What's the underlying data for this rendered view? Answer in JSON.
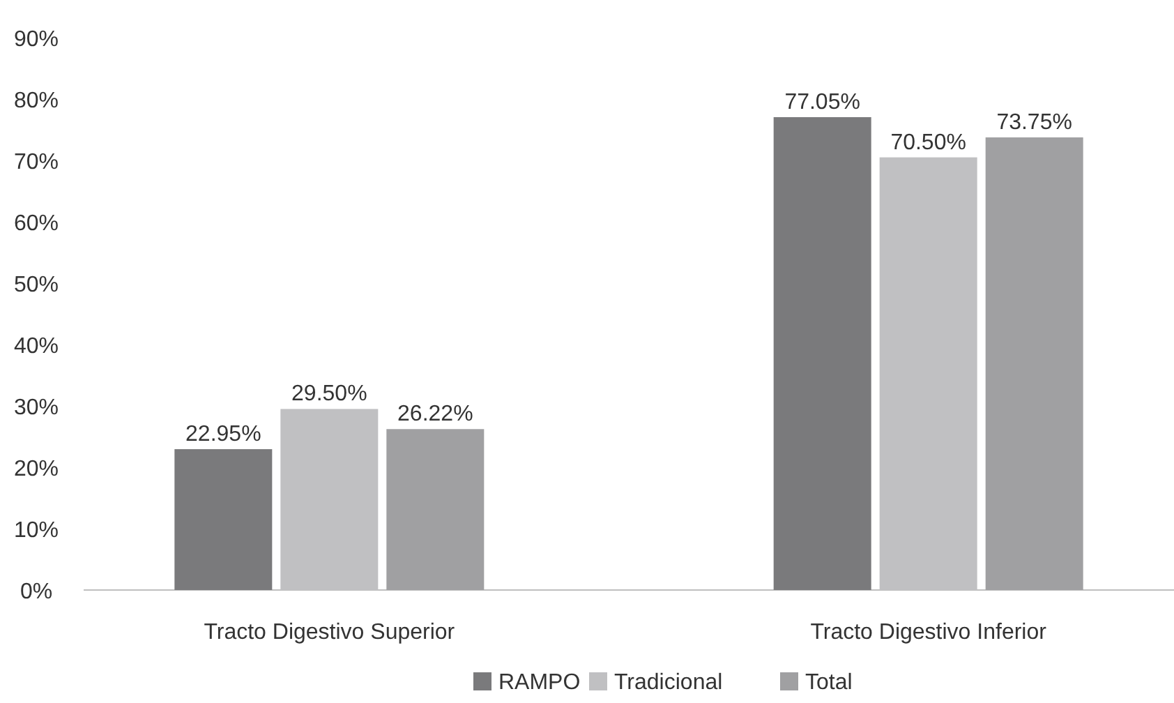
{
  "chart_data": {
    "type": "bar",
    "categories": [
      "Tracto Digestivo Superior",
      "Tracto Digestivo Inferior"
    ],
    "series": [
      {
        "name": "RAMPO",
        "color": "#7a7a7c",
        "values": [
          22.95,
          77.05
        ],
        "value_labels": [
          "22.95%",
          "77.05%"
        ]
      },
      {
        "name": "Tradicional",
        "color": "#c0c0c2",
        "values": [
          29.5,
          70.5
        ],
        "value_labels": [
          "29.50%",
          "70.50%"
        ]
      },
      {
        "name": "Total",
        "color": "#a0a0a2",
        "values": [
          26.22,
          73.75
        ],
        "value_labels": [
          "26.22%",
          "73.75%"
        ]
      }
    ],
    "ylim": [
      0,
      90
    ],
    "yticks": [
      {
        "value": 0,
        "label": "0%"
      },
      {
        "value": 10,
        "label": "10%"
      },
      {
        "value": 20,
        "label": "20%"
      },
      {
        "value": 30,
        "label": "30%"
      },
      {
        "value": 40,
        "label": "40%"
      },
      {
        "value": 50,
        "label": "50%"
      },
      {
        "value": 60,
        "label": "60%"
      },
      {
        "value": 70,
        "label": "70%"
      },
      {
        "value": 80,
        "label": "80%"
      },
      {
        "value": 90,
        "label": "90%"
      }
    ],
    "grid": false,
    "legend": "bottom"
  }
}
